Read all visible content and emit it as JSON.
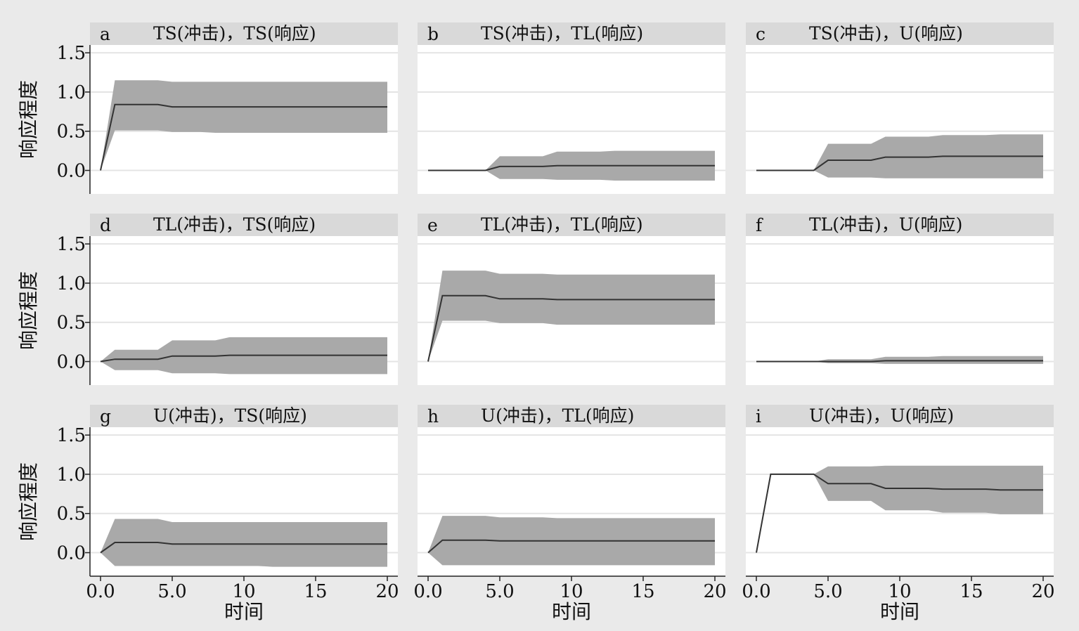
{
  "colors": {
    "figure_background": "#eaeaea",
    "plot_background": "#ffffff",
    "title_strip": "#d9d9d9",
    "confidence_band": "#a9a9a9",
    "gridline": "#e4e4e4",
    "line": "#333333",
    "axis": "#222222"
  },
  "ylabel": "响应程度",
  "xlabel": "时间",
  "chart_data": {
    "type": "area",
    "xlim": [
      0,
      20
    ],
    "ylim": [
      -0.3,
      1.6
    ],
    "xticks": [
      0,
      5,
      10,
      15,
      20
    ],
    "xtick_labels": [
      "0.0",
      "5.0",
      "10",
      "15",
      "20"
    ],
    "yticks": [
      0,
      0.5,
      1.0,
      1.5
    ],
    "ytick_labels": [
      "0.0",
      "0.5",
      "1.0",
      "1.5"
    ],
    "grid": true,
    "x": [
      0,
      1,
      2,
      3,
      4,
      5,
      6,
      7,
      8,
      9,
      10,
      11,
      12,
      13,
      14,
      15,
      16,
      17,
      18,
      19,
      20
    ],
    "panels": [
      {
        "letter": "a",
        "title": "TS(冲击)，TS(响应)",
        "irf": [
          0,
          0.84,
          0.84,
          0.84,
          0.84,
          0.81,
          0.81,
          0.81,
          0.81,
          0.81,
          0.81,
          0.81,
          0.81,
          0.81,
          0.81,
          0.81,
          0.81,
          0.81,
          0.81,
          0.81,
          0.81
        ],
        "lower": [
          0,
          0.51,
          0.51,
          0.51,
          0.51,
          0.49,
          0.49,
          0.49,
          0.48,
          0.48,
          0.48,
          0.48,
          0.48,
          0.48,
          0.48,
          0.48,
          0.48,
          0.48,
          0.48,
          0.48,
          0.48
        ],
        "upper": [
          0,
          1.15,
          1.15,
          1.15,
          1.15,
          1.13,
          1.13,
          1.13,
          1.13,
          1.13,
          1.13,
          1.13,
          1.13,
          1.13,
          1.13,
          1.13,
          1.13,
          1.13,
          1.13,
          1.13,
          1.13
        ]
      },
      {
        "letter": "b",
        "title": "TS(冲击)，TL(响应)",
        "irf": [
          0,
          0,
          0,
          0,
          0,
          0.05,
          0.05,
          0.05,
          0.05,
          0.06,
          0.06,
          0.06,
          0.06,
          0.06,
          0.06,
          0.06,
          0.06,
          0.06,
          0.06,
          0.06,
          0.06
        ],
        "lower": [
          0,
          0,
          0,
          0,
          0,
          -0.11,
          -0.11,
          -0.11,
          -0.11,
          -0.12,
          -0.12,
          -0.12,
          -0.12,
          -0.13,
          -0.13,
          -0.13,
          -0.13,
          -0.13,
          -0.13,
          -0.13,
          -0.13
        ],
        "upper": [
          0,
          0,
          0,
          0,
          0,
          0.18,
          0.18,
          0.18,
          0.18,
          0.24,
          0.24,
          0.24,
          0.24,
          0.25,
          0.25,
          0.25,
          0.25,
          0.25,
          0.25,
          0.25,
          0.25
        ]
      },
      {
        "letter": "c",
        "title": "TS(冲击)，U(响应)",
        "irf": [
          0,
          0,
          0,
          0,
          0,
          0.13,
          0.13,
          0.13,
          0.13,
          0.17,
          0.17,
          0.17,
          0.17,
          0.18,
          0.18,
          0.18,
          0.18,
          0.18,
          0.18,
          0.18,
          0.18
        ],
        "lower": [
          0,
          0,
          0,
          0,
          0,
          -0.09,
          -0.09,
          -0.09,
          -0.09,
          -0.1,
          -0.1,
          -0.1,
          -0.1,
          -0.1,
          -0.1,
          -0.1,
          -0.1,
          -0.1,
          -0.1,
          -0.1,
          -0.1
        ],
        "upper": [
          0,
          0,
          0,
          0,
          0,
          0.34,
          0.34,
          0.34,
          0.34,
          0.43,
          0.43,
          0.43,
          0.43,
          0.45,
          0.45,
          0.45,
          0.45,
          0.46,
          0.46,
          0.46,
          0.46
        ]
      },
      {
        "letter": "d",
        "title": "TL(冲击)，TS(响应)",
        "irf": [
          0,
          0.03,
          0.03,
          0.03,
          0.03,
          0.07,
          0.07,
          0.07,
          0.07,
          0.08,
          0.08,
          0.08,
          0.08,
          0.08,
          0.08,
          0.08,
          0.08,
          0.08,
          0.08,
          0.08,
          0.08
        ],
        "lower": [
          0,
          -0.11,
          -0.11,
          -0.11,
          -0.11,
          -0.15,
          -0.15,
          -0.15,
          -0.15,
          -0.16,
          -0.16,
          -0.16,
          -0.16,
          -0.16,
          -0.16,
          -0.16,
          -0.16,
          -0.16,
          -0.16,
          -0.16,
          -0.16
        ],
        "upper": [
          0,
          0.15,
          0.15,
          0.15,
          0.15,
          0.27,
          0.27,
          0.27,
          0.27,
          0.31,
          0.31,
          0.31,
          0.31,
          0.31,
          0.31,
          0.31,
          0.31,
          0.31,
          0.31,
          0.31,
          0.31
        ]
      },
      {
        "letter": "e",
        "title": "TL(冲击)，TL(响应)",
        "irf": [
          0,
          0.84,
          0.84,
          0.84,
          0.84,
          0.8,
          0.8,
          0.8,
          0.8,
          0.79,
          0.79,
          0.79,
          0.79,
          0.79,
          0.79,
          0.79,
          0.79,
          0.79,
          0.79,
          0.79,
          0.79
        ],
        "lower": [
          0,
          0.52,
          0.52,
          0.52,
          0.52,
          0.49,
          0.49,
          0.49,
          0.49,
          0.47,
          0.47,
          0.47,
          0.47,
          0.47,
          0.47,
          0.47,
          0.47,
          0.47,
          0.47,
          0.47,
          0.47
        ],
        "upper": [
          0,
          1.16,
          1.16,
          1.16,
          1.16,
          1.12,
          1.12,
          1.12,
          1.12,
          1.11,
          1.11,
          1.11,
          1.11,
          1.11,
          1.11,
          1.11,
          1.11,
          1.11,
          1.11,
          1.11,
          1.11
        ]
      },
      {
        "letter": "f",
        "title": "TL(冲击)，U(响应)",
        "irf": [
          0,
          0,
          0,
          0,
          0,
          0,
          0,
          0,
          0,
          0.01,
          0.01,
          0.01,
          0.01,
          0.01,
          0.01,
          0.01,
          0.01,
          0.01,
          0.01,
          0.01,
          0.01
        ],
        "lower": [
          0,
          0,
          0,
          0,
          0,
          -0.02,
          -0.02,
          -0.02,
          -0.02,
          -0.03,
          -0.03,
          -0.03,
          -0.03,
          -0.03,
          -0.03,
          -0.03,
          -0.03,
          -0.03,
          -0.03,
          -0.03,
          -0.03
        ],
        "upper": [
          0,
          0,
          0,
          0,
          0,
          0.03,
          0.03,
          0.03,
          0.03,
          0.06,
          0.06,
          0.06,
          0.06,
          0.07,
          0.07,
          0.07,
          0.07,
          0.07,
          0.07,
          0.07,
          0.07
        ]
      },
      {
        "letter": "g",
        "title": "U(冲击)，TS(响应)",
        "irf": [
          0,
          0.13,
          0.13,
          0.13,
          0.13,
          0.11,
          0.11,
          0.11,
          0.11,
          0.11,
          0.11,
          0.11,
          0.11,
          0.11,
          0.11,
          0.11,
          0.11,
          0.11,
          0.11,
          0.11,
          0.11
        ],
        "lower": [
          0,
          -0.17,
          -0.17,
          -0.17,
          -0.17,
          -0.17,
          -0.17,
          -0.17,
          -0.17,
          -0.17,
          -0.17,
          -0.17,
          -0.18,
          -0.18,
          -0.18,
          -0.18,
          -0.18,
          -0.18,
          -0.18,
          -0.18,
          -0.18
        ],
        "upper": [
          0,
          0.43,
          0.43,
          0.43,
          0.43,
          0.39,
          0.39,
          0.39,
          0.39,
          0.39,
          0.39,
          0.39,
          0.39,
          0.39,
          0.39,
          0.39,
          0.39,
          0.39,
          0.39,
          0.39,
          0.39
        ]
      },
      {
        "letter": "h",
        "title": "U(冲击)，TL(响应)",
        "irf": [
          0,
          0.16,
          0.16,
          0.16,
          0.16,
          0.15,
          0.15,
          0.15,
          0.15,
          0.15,
          0.15,
          0.15,
          0.15,
          0.15,
          0.15,
          0.15,
          0.15,
          0.15,
          0.15,
          0.15,
          0.15
        ],
        "lower": [
          0,
          -0.16,
          -0.16,
          -0.16,
          -0.16,
          -0.16,
          -0.16,
          -0.16,
          -0.16,
          -0.16,
          -0.16,
          -0.16,
          -0.16,
          -0.16,
          -0.16,
          -0.16,
          -0.16,
          -0.16,
          -0.16,
          -0.16,
          -0.16
        ],
        "upper": [
          0,
          0.47,
          0.47,
          0.47,
          0.47,
          0.45,
          0.45,
          0.45,
          0.45,
          0.44,
          0.44,
          0.44,
          0.44,
          0.44,
          0.44,
          0.44,
          0.44,
          0.44,
          0.44,
          0.44,
          0.44
        ]
      },
      {
        "letter": "i",
        "title": "U(冲击)，U(响应)",
        "irf": [
          0,
          1.0,
          1.0,
          1.0,
          1.0,
          0.88,
          0.88,
          0.88,
          0.88,
          0.82,
          0.82,
          0.82,
          0.82,
          0.81,
          0.81,
          0.81,
          0.81,
          0.8,
          0.8,
          0.8,
          0.8
        ],
        "lower": [
          0,
          1.0,
          1.0,
          1.0,
          1.0,
          0.66,
          0.66,
          0.66,
          0.66,
          0.54,
          0.54,
          0.54,
          0.54,
          0.51,
          0.51,
          0.51,
          0.51,
          0.49,
          0.49,
          0.49,
          0.49
        ],
        "upper": [
          0,
          1.0,
          1.0,
          1.0,
          1.0,
          1.1,
          1.1,
          1.1,
          1.1,
          1.11,
          1.11,
          1.11,
          1.11,
          1.11,
          1.11,
          1.11,
          1.11,
          1.11,
          1.11,
          1.11,
          1.11
        ]
      }
    ]
  }
}
